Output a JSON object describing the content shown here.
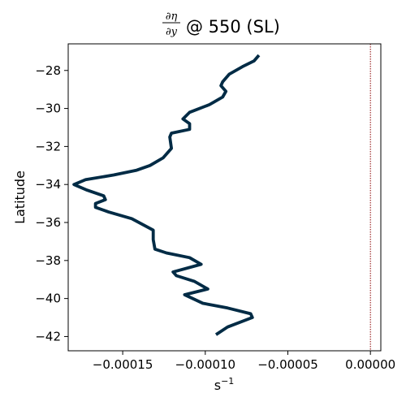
{
  "chart_data": {
    "type": "line",
    "title": {
      "numerator": "∂η",
      "denominator": "∂y",
      "suffix": "@ 550 (SL)"
    },
    "xlabel": "s",
    "xlabel_superscript": "−1",
    "ylabel": "Latitude",
    "xlim": [
      -0.000183,
      6.3e-06
    ],
    "ylim": [
      -42.75,
      -26.6
    ],
    "xticks": [
      -0.00015,
      -0.0001,
      -5e-05,
      0.0
    ],
    "xtick_labels": [
      "−0.00015",
      "−0.00010",
      "−0.00005",
      "0.00000"
    ],
    "yticks": [
      -42,
      -40,
      -38,
      -36,
      -34,
      -32,
      -30,
      -28
    ],
    "ytick_labels": [
      "−42",
      "−40",
      "−38",
      "−36",
      "−34",
      "−32",
      "−30",
      "−28"
    ],
    "grid": false,
    "reference_line": {
      "x": 0.0,
      "color": "#8b0000",
      "style": "dotted"
    },
    "series": [
      {
        "color": "#002b45",
        "x": [
          -6.75e-05,
          -7.05e-05,
          -7.75e-05,
          -8.55e-05,
          -8.95e-05,
          -9.05e-05,
          -8.75e-05,
          -8.95e-05,
          -9.75e-05,
          -0.0001095,
          -0.0001135,
          -0.0001095,
          -0.0001095,
          -0.0001205,
          -0.0001215,
          -0.0001205,
          -0.0001255,
          -0.0001335,
          -0.0001415,
          -0.0001555,
          -0.0001725,
          -0.0001795,
          -0.0001715,
          -0.0001615,
          -0.0001605,
          -0.0001665,
          -0.0001665,
          -0.0001585,
          -0.0001445,
          -0.0001315,
          -0.0001315,
          -0.0001305,
          -0.0001235,
          -0.0001095,
          -0.0001025,
          -0.0001195,
          -0.0001175,
          -0.0001065,
          -9.85e-05,
          -0.0001125,
          -0.0001015,
          -8.65e-05,
          -7.25e-05,
          -7.15e-05,
          -8.65e-05,
          -9.35e-05
        ],
        "y": [
          -27.2,
          -27.5,
          -27.8,
          -28.2,
          -28.6,
          -28.8,
          -29.1,
          -29.4,
          -29.8,
          -30.2,
          -30.55,
          -30.8,
          -31.1,
          -31.3,
          -31.5,
          -32.1,
          -32.6,
          -33.0,
          -33.25,
          -33.5,
          -33.75,
          -34.0,
          -34.3,
          -34.6,
          -34.8,
          -35.0,
          -35.2,
          -35.45,
          -35.8,
          -36.4,
          -36.9,
          -37.4,
          -37.6,
          -37.85,
          -38.2,
          -38.6,
          -38.8,
          -39.1,
          -39.5,
          -39.8,
          -40.25,
          -40.5,
          -40.8,
          -41.0,
          -41.5,
          -41.9
        ]
      }
    ]
  }
}
